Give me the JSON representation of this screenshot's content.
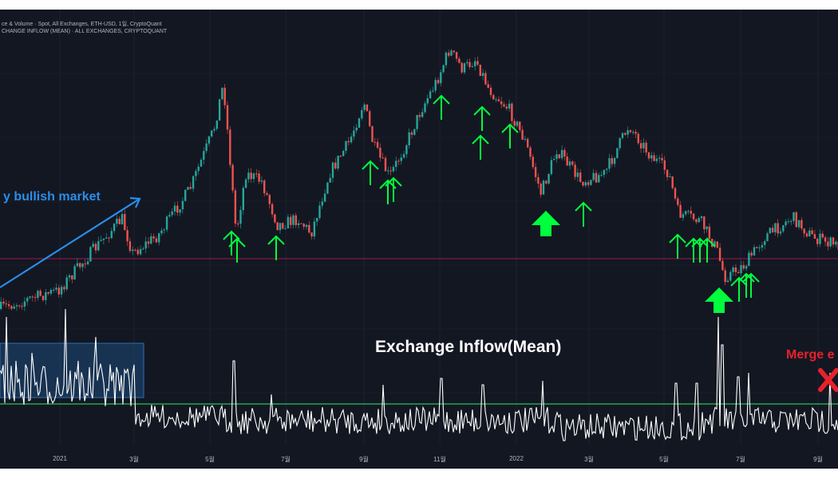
{
  "header": {
    "line1": "ce & Volume · Spot, All Exchanges, ETH-USD, 1일, CryptoQuant",
    "line2": "CHANGE INFLOW (MEAN) · ALL EXCHANGES, CRYPTOQUANT"
  },
  "annotations": {
    "bullish": "y bullish market",
    "inflow_title": "Exchange Inflow(Mean)",
    "merge": "Merge e"
  },
  "colors": {
    "background": "#131722",
    "candle_up": "#26a69a",
    "candle_down": "#ef5350",
    "inflow_line": "#ffffff",
    "threshold_line": "#22c55e",
    "price_level_line": "#c2185b",
    "arrows": "#00ff3c",
    "trend_arrow": "#2a8de8",
    "highlight_box": "#1e4a7a",
    "merge_mark": "#e8212b"
  },
  "icons": {
    "signal": "up-arrow-icon",
    "merge": "x-mark-icon",
    "trend": "trend-arrow-icon"
  },
  "chart_data": {
    "type": "line",
    "x_ticks": [
      "2021",
      "3월",
      "5월",
      "7월",
      "9월",
      "11월",
      "2022",
      "3월",
      "5월",
      "7월",
      "9월"
    ]
  }
}
